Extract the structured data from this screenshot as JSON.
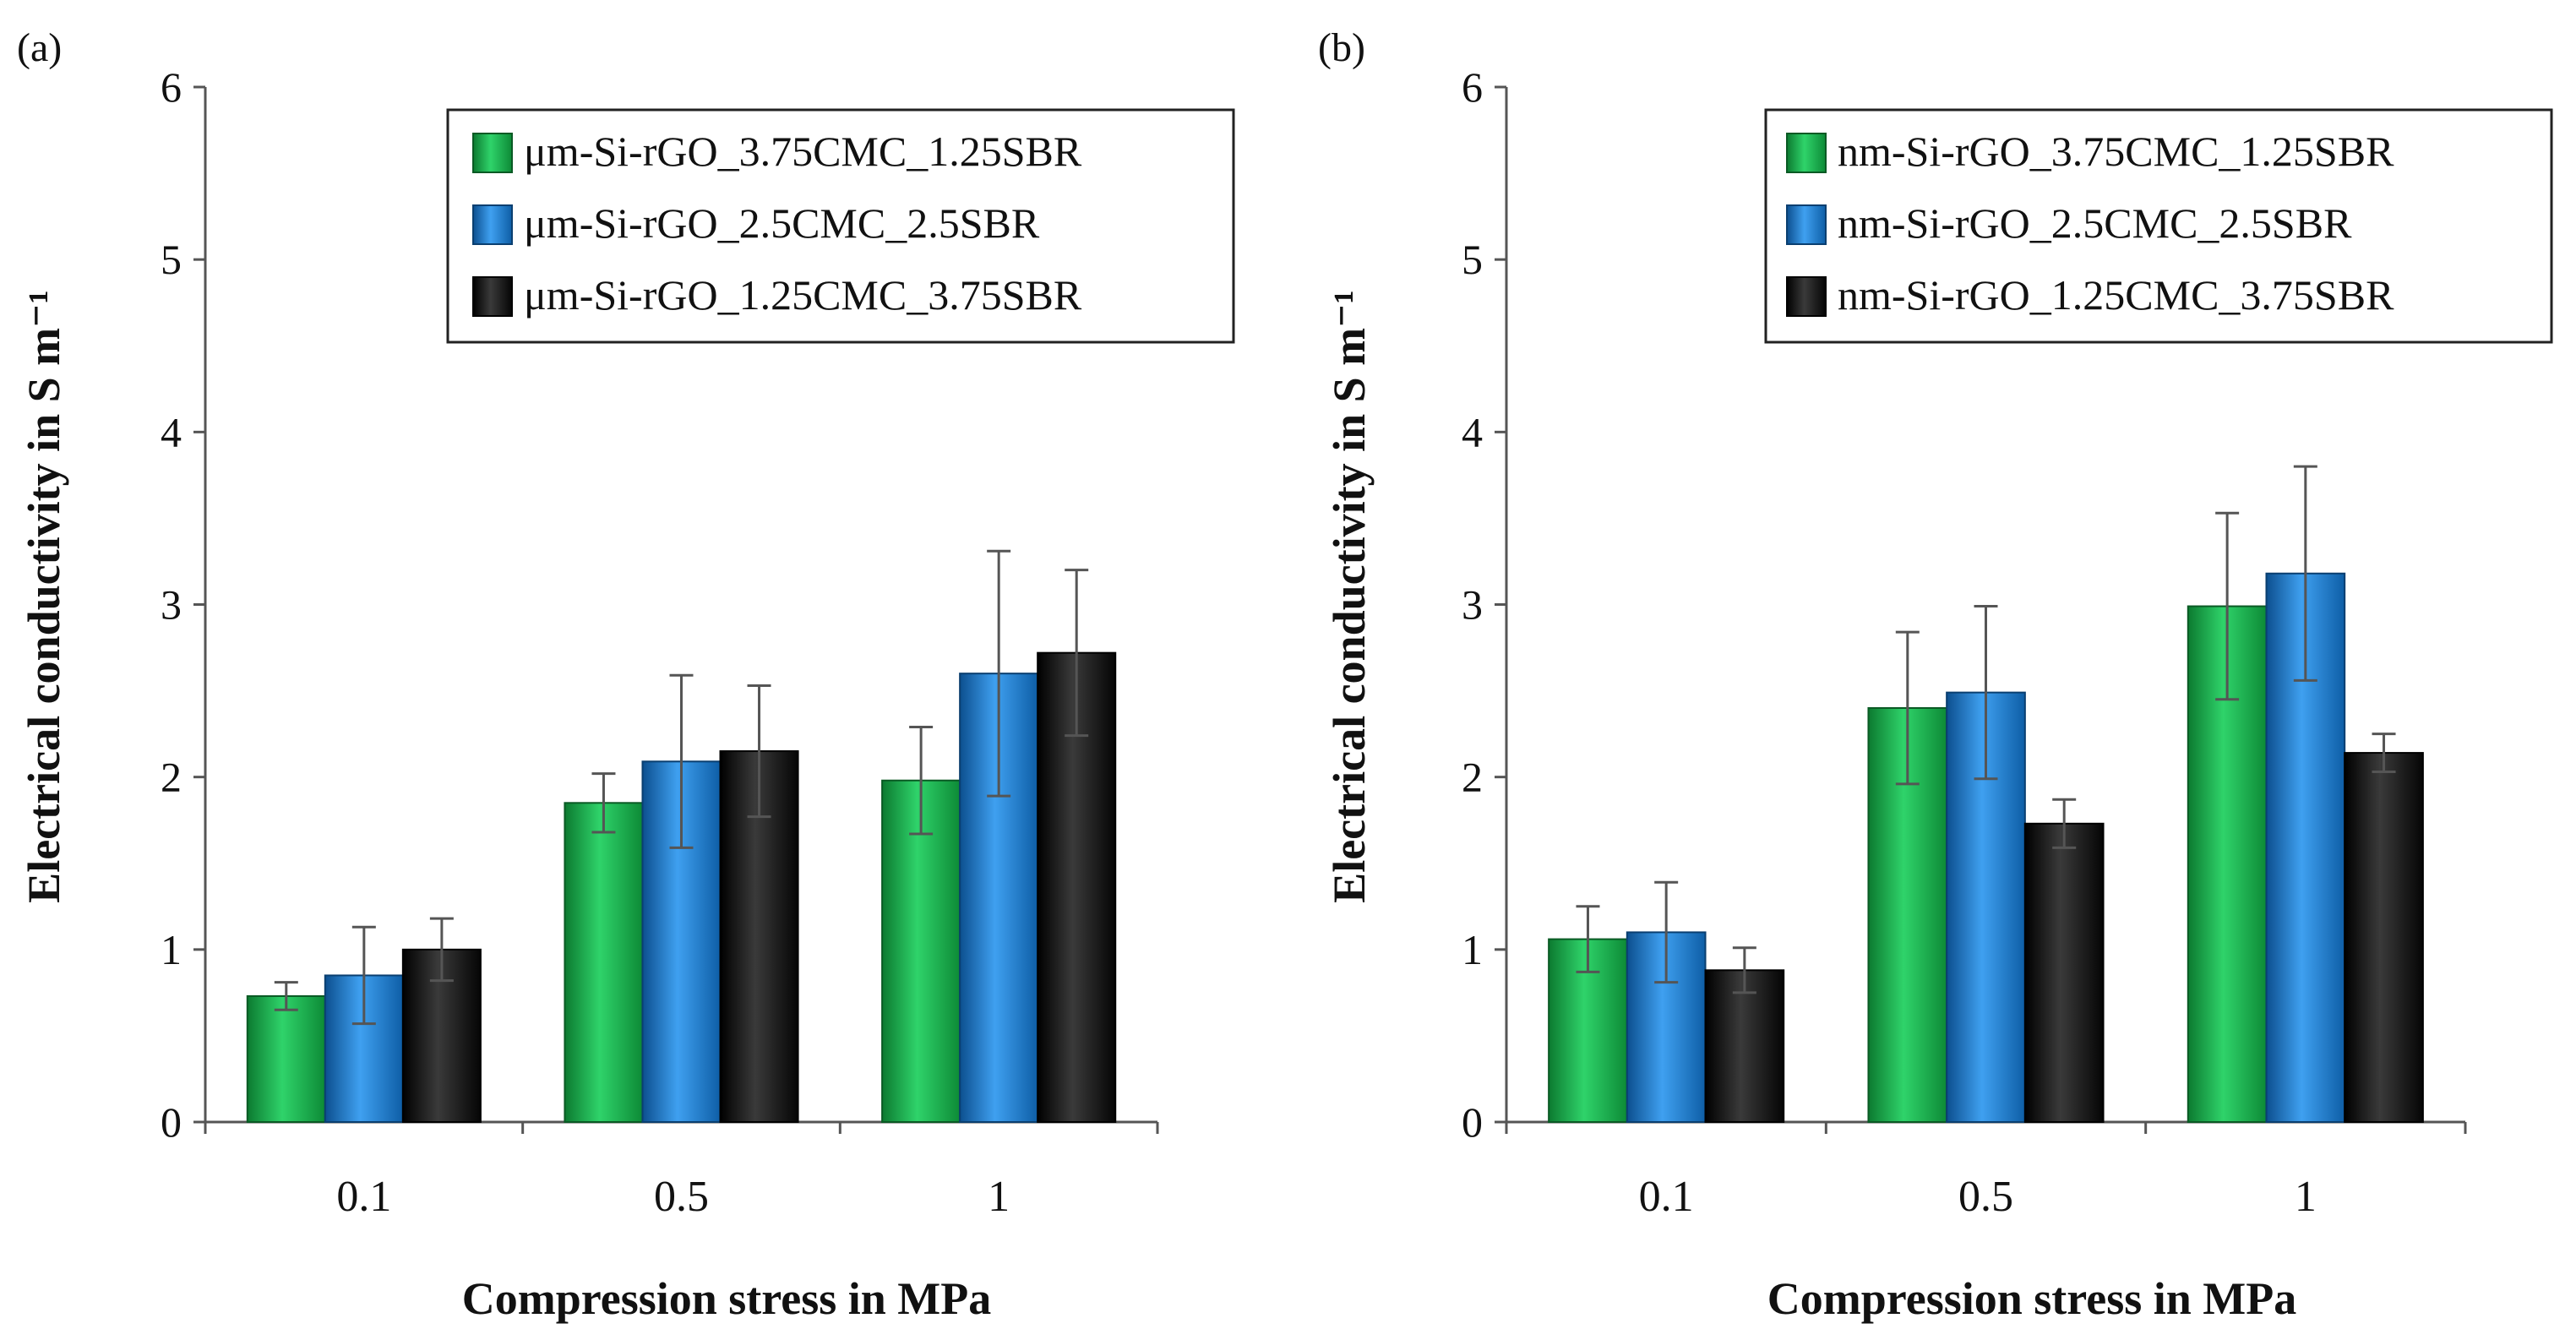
{
  "chart_data": [
    {
      "panel": "(a)",
      "type": "bar",
      "xlabel": "Compression stress in MPa",
      "ylabel": "Electrical conductivity in S m⁻¹",
      "categories": [
        "0.1",
        "0.5",
        "1"
      ],
      "ylim": [
        0,
        6
      ],
      "yticks": [
        "0",
        "1",
        "2",
        "3",
        "4",
        "5",
        "6"
      ],
      "legend_position": "top-right",
      "series": [
        {
          "name": "μm-Si-rGO_3.75CMC_1.25SBR",
          "color": "#17b24a",
          "values": [
            0.73,
            1.85,
            1.98
          ],
          "errors": [
            0.08,
            0.17,
            0.31
          ]
        },
        {
          "name": "μm-Si-rGO_2.5CMC_2.5SBR",
          "color": "#1778cc",
          "values": [
            0.85,
            2.09,
            2.6
          ],
          "errors": [
            0.28,
            0.5,
            0.71
          ]
        },
        {
          "name": "μm-Si-rGO_1.25CMC_3.75SBR",
          "color": "#111111",
          "values": [
            1.0,
            2.15,
            2.72
          ],
          "errors": [
            0.18,
            0.38,
            0.48
          ]
        }
      ]
    },
    {
      "panel": "(b)",
      "type": "bar",
      "xlabel": "Compression stress in MPa",
      "ylabel": "Electrical conductivity in S m⁻¹",
      "categories": [
        "0.1",
        "0.5",
        "1"
      ],
      "ylim": [
        0,
        6
      ],
      "yticks": [
        "0",
        "1",
        "2",
        "3",
        "4",
        "5",
        "6"
      ],
      "legend_position": "top-right",
      "series": [
        {
          "name": "nm-Si-rGO_3.75CMC_1.25SBR",
          "color": "#17b24a",
          "values": [
            1.06,
            2.4,
            2.99
          ],
          "errors": [
            0.19,
            0.44,
            0.54
          ]
        },
        {
          "name": "nm-Si-rGO_2.5CMC_2.5SBR",
          "color": "#1778cc",
          "values": [
            1.1,
            2.49,
            3.18
          ],
          "errors": [
            0.29,
            0.5,
            0.62
          ]
        },
        {
          "name": "nm-Si-rGO_1.25CMC_3.75SBR",
          "color": "#111111",
          "values": [
            0.88,
            1.73,
            2.14
          ],
          "errors": [
            0.13,
            0.14,
            0.11
          ]
        }
      ]
    }
  ]
}
